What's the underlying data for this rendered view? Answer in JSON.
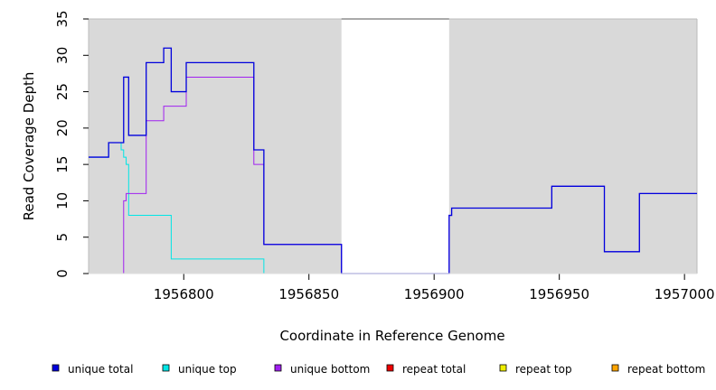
{
  "chart_data": {
    "type": "line",
    "xlabel": "Coordinate in Reference Genome",
    "ylabel": "Read Coverage Depth",
    "xlim": [
      1956762,
      1957005
    ],
    "ylim": [
      0,
      35
    ],
    "x_ticks": [
      1956800,
      1956850,
      1956900,
      1956950,
      1957000
    ],
    "x_tick_labels": [
      "1956800",
      "1956850",
      "1956900",
      "1956950",
      "1957000"
    ],
    "y_ticks": [
      0,
      5,
      10,
      15,
      20,
      25,
      30,
      35
    ],
    "y_tick_labels": [
      "0",
      "5",
      "10",
      "15",
      "20",
      "25",
      "30",
      "35"
    ],
    "background_color": "#d9d9d9",
    "gap_region": [
      1956863,
      1956906
    ],
    "gap_color": "#ffffff",
    "grid": true,
    "legend_position": "bottom",
    "series": [
      {
        "name": "unique total",
        "color": "#0000dd",
        "x": [
          1956762,
          1956770,
          1956776,
          1956778,
          1956785,
          1956792,
          1956795,
          1956801,
          1956828,
          1956832,
          1956863,
          1956906,
          1956907,
          1956947,
          1956968,
          1956982,
          1957005
        ],
        "values": [
          16,
          18,
          27,
          19,
          29,
          31,
          25,
          29,
          17,
          4,
          0,
          8,
          9,
          12,
          3,
          11,
          11
        ]
      },
      {
        "name": "unique top",
        "color": "#00e5e5",
        "x": [
          1956762,
          1956770,
          1956775,
          1956776,
          1956777,
          1956778,
          1956794,
          1956795,
          1956832,
          1957005
        ],
        "values": [
          16,
          18,
          17,
          16,
          15,
          8,
          8,
          2,
          0,
          0
        ]
      },
      {
        "name": "unique bottom",
        "color": "#a020f0",
        "x": [
          1956762,
          1956776,
          1956777,
          1956778,
          1956785,
          1956792,
          1956801,
          1956828,
          1956832,
          1956863,
          1956906,
          1956907,
          1956947,
          1956968,
          1956982,
          1957005
        ],
        "values": [
          0,
          10,
          11,
          11,
          21,
          23,
          27,
          15,
          4,
          0,
          8,
          9,
          12,
          3,
          11,
          11
        ]
      },
      {
        "name": "repeat total",
        "color": "#ee0000",
        "x": [
          1956762,
          1957005
        ],
        "values": [
          0,
          0
        ]
      },
      {
        "name": "repeat top",
        "color": "#eeee00",
        "x": [
          1956762,
          1957005
        ],
        "values": [
          0,
          0
        ]
      },
      {
        "name": "repeat bottom",
        "color": "#ffa500",
        "x": [
          1956762,
          1957005
        ],
        "values": [
          0,
          0
        ]
      }
    ]
  }
}
